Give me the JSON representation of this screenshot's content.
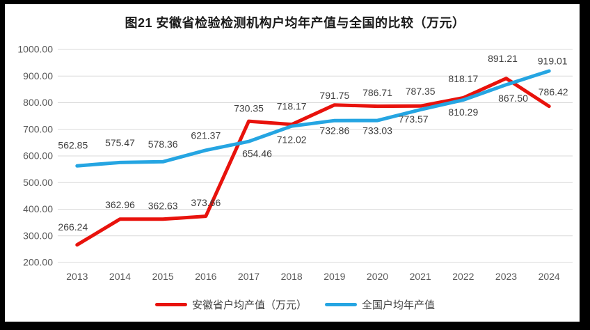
{
  "title": "图21 安徽省检验检测机构户均年产值与全国的比较（万元）",
  "chart_data": {
    "type": "line",
    "categories": [
      "2013",
      "2014",
      "2015",
      "2016",
      "2017",
      "2018",
      "2019",
      "2020",
      "2021",
      "2022",
      "2023",
      "2024"
    ],
    "series": [
      {
        "name": "安徽省户均产值（万元）",
        "color": "#e8120c",
        "values": [
          266.24,
          362.96,
          362.63,
          373.66,
          730.35,
          718.17,
          791.75,
          786.71,
          787.35,
          818.17,
          891.21,
          786.42
        ]
      },
      {
        "name": "全国户均年产值",
        "color": "#25a5e2",
        "values": [
          562.85,
          575.47,
          578.36,
          621.37,
          654.46,
          712.02,
          732.86,
          733.03,
          773.57,
          810.29,
          867.5,
          919.01
        ]
      }
    ],
    "ylim": [
      200,
      1000
    ],
    "ytick_step": 100,
    "ytick_labels": [
      "200.00",
      "300.00",
      "400.00",
      "500.00",
      "600.00",
      "700.00",
      "800.00",
      "900.00",
      "1000.00"
    ],
    "grid": true,
    "data_labels": true,
    "label_decimals": 2,
    "legend_position": "bottom",
    "xlabel": "",
    "ylabel": ""
  },
  "colors": {
    "background": "#ffffff",
    "frame": "#000000",
    "grid": "#d9d9d9",
    "axis_text": "#595959",
    "label_text": "#3f3f3f",
    "title_text": "#1a1a1a"
  }
}
